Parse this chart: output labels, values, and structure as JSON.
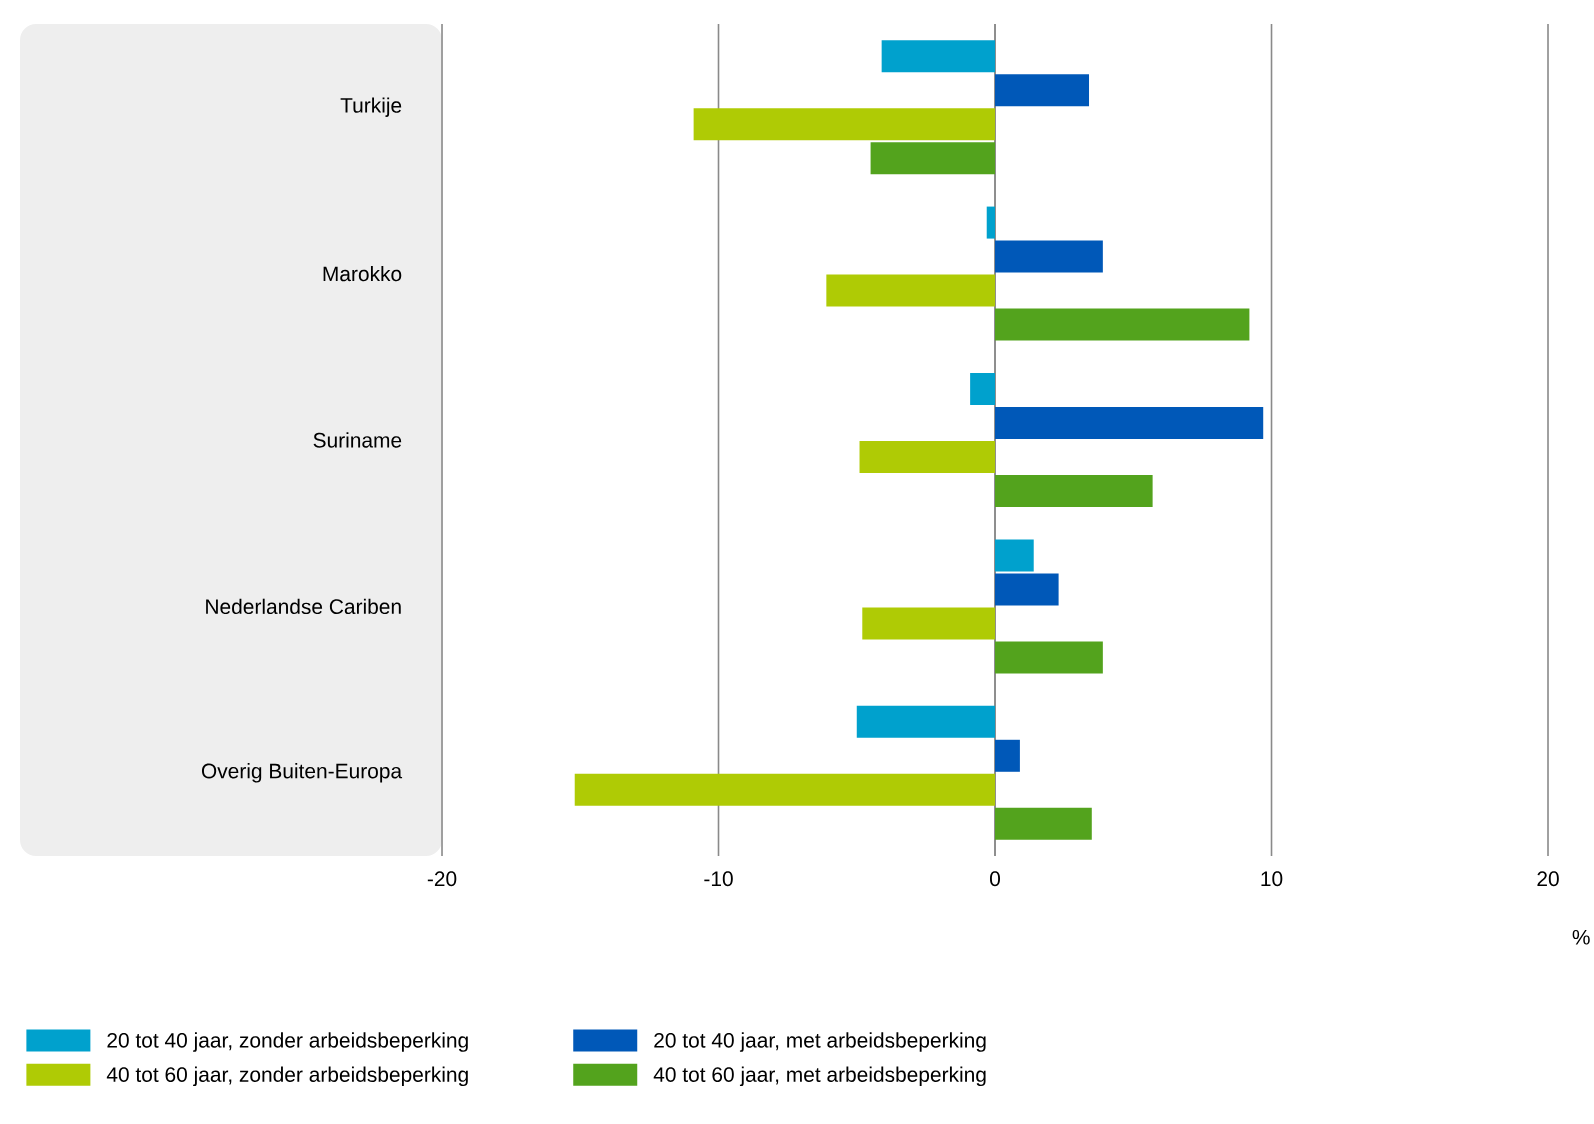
{
  "chart_data": {
    "type": "bar",
    "orientation": "horizontal",
    "categories": [
      "Turkije",
      "Marokko",
      "Suriname",
      "Nederlandse Cariben",
      "Overig Buiten-Europa"
    ],
    "series": [
      {
        "name": "20 tot 40 jaar, zonder arbeidsbeperking",
        "color": "#00a1cd",
        "values": [
          -4.1,
          -0.3,
          -0.9,
          1.4,
          -5.0
        ]
      },
      {
        "name": "20 tot 40 jaar, met arbeidsbeperking",
        "color": "#0058b8",
        "values": [
          3.4,
          3.9,
          9.7,
          2.3,
          0.9
        ]
      },
      {
        "name": "40 tot 60 jaar, zonder arbeidsbeperking",
        "color": "#afcb05",
        "values": [
          -10.9,
          -6.1,
          -4.9,
          -4.8,
          -15.2
        ]
      },
      {
        "name": "40 tot 60 jaar, met arbeidsbeperking",
        "color": "#53a31d",
        "values": [
          -4.5,
          9.2,
          5.7,
          3.9,
          3.5
        ]
      }
    ],
    "xlim": [
      -20,
      20
    ],
    "xticks": [
      -20,
      -10,
      0,
      10,
      20
    ],
    "xlabel": "%",
    "grid": "x",
    "legend": "bottom"
  }
}
